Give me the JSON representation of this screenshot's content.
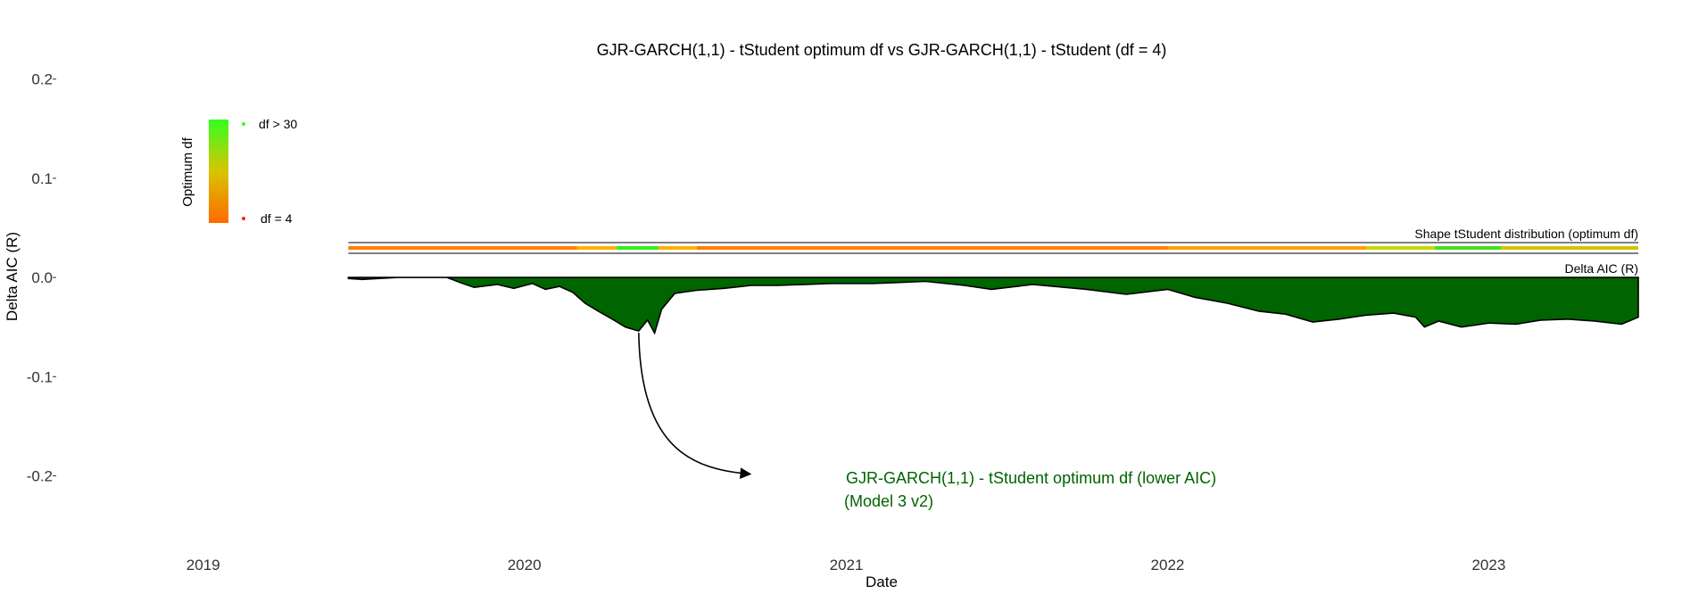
{
  "chart_data": {
    "type": "area",
    "title": "GJR-GARCH(1,1) - tStudent optimum df vs GJR-GARCH(1,1) - tStudent (df = 4)",
    "xlabel": "Date",
    "ylabel": "Delta AIC (R)",
    "x_ticks": [
      {
        "date": "2019-01-01",
        "label": "2019"
      },
      {
        "date": "2020-01-01",
        "label": "2020"
      },
      {
        "date": "2021-01-01",
        "label": "2021"
      },
      {
        "date": "2022-01-01",
        "label": "2022"
      },
      {
        "date": "2023-01-01",
        "label": "2023"
      }
    ],
    "y_ticks": [
      {
        "value": 0.2,
        "label": "0.2"
      },
      {
        "value": 0.1,
        "label": "0.1"
      },
      {
        "value": 0.0,
        "label": "0.0"
      },
      {
        "value": -0.1,
        "label": "-0.1"
      },
      {
        "value": -0.2,
        "label": "-0.2"
      }
    ],
    "xlim": [
      "2018-07-20",
      "2023-06-22"
    ],
    "ylim": [
      -0.258,
      0.215
    ],
    "grid": false,
    "series": [
      {
        "name": "Delta AIC (R)",
        "color": "#006400",
        "points": [
          [
            "2019-06-15",
            -0.001
          ],
          [
            "2019-07-01",
            -0.002
          ],
          [
            "2019-07-20",
            -0.001
          ],
          [
            "2019-08-10",
            0.0
          ],
          [
            "2019-09-10",
            0.0
          ],
          [
            "2019-10-05",
            0.0
          ],
          [
            "2019-10-20",
            -0.005
          ],
          [
            "2019-11-05",
            -0.01
          ],
          [
            "2019-12-01",
            -0.007
          ],
          [
            "2019-12-20",
            -0.011
          ],
          [
            "2020-01-10",
            -0.006
          ],
          [
            "2020-01-25",
            -0.012
          ],
          [
            "2020-02-10",
            -0.009
          ],
          [
            "2020-02-25",
            -0.015
          ],
          [
            "2020-03-10",
            -0.026
          ],
          [
            "2020-03-25",
            -0.034
          ],
          [
            "2020-04-10",
            -0.042
          ],
          [
            "2020-04-25",
            -0.05
          ],
          [
            "2020-05-10",
            -0.054
          ],
          [
            "2020-05-20",
            -0.043
          ],
          [
            "2020-05-28",
            -0.056
          ],
          [
            "2020-06-05",
            -0.032
          ],
          [
            "2020-06-20",
            -0.016
          ],
          [
            "2020-07-15",
            -0.013
          ],
          [
            "2020-08-15",
            -0.011
          ],
          [
            "2020-09-15",
            -0.008
          ],
          [
            "2020-10-15",
            -0.008
          ],
          [
            "2020-11-15",
            -0.007
          ],
          [
            "2020-12-15",
            -0.006
          ],
          [
            "2021-02-01",
            -0.006
          ],
          [
            "2021-04-01",
            -0.004
          ],
          [
            "2021-05-15",
            -0.008
          ],
          [
            "2021-06-15",
            -0.012
          ],
          [
            "2021-08-01",
            -0.007
          ],
          [
            "2021-10-01",
            -0.012
          ],
          [
            "2021-11-15",
            -0.017
          ],
          [
            "2022-01-01",
            -0.012
          ],
          [
            "2022-02-01",
            -0.02
          ],
          [
            "2022-03-10",
            -0.026
          ],
          [
            "2022-04-15",
            -0.034
          ],
          [
            "2022-05-15",
            -0.037
          ],
          [
            "2022-06-15",
            -0.045
          ],
          [
            "2022-07-15",
            -0.042
          ],
          [
            "2022-08-15",
            -0.038
          ],
          [
            "2022-09-15",
            -0.036
          ],
          [
            "2022-10-10",
            -0.04
          ],
          [
            "2022-10-20",
            -0.05
          ],
          [
            "2022-11-05",
            -0.044
          ],
          [
            "2022-12-01",
            -0.05
          ],
          [
            "2023-01-01",
            -0.046
          ],
          [
            "2023-02-01",
            -0.047
          ],
          [
            "2023-03-01",
            -0.043
          ],
          [
            "2023-04-01",
            -0.042
          ],
          [
            "2023-05-01",
            -0.044
          ],
          [
            "2023-06-01",
            -0.047
          ],
          [
            "2023-06-20",
            -0.04
          ]
        ]
      }
    ],
    "band_labels": {
      "shape": "Shape tStudent distribution (optimum df)",
      "delta": "Delta AIC (R)"
    },
    "df_segments": [
      {
        "start": "2019-06-15",
        "end": "2020-03-01",
        "color": "#ff8000"
      },
      {
        "start": "2020-03-01",
        "end": "2020-04-15",
        "color": "#ffb000"
      },
      {
        "start": "2020-04-15",
        "end": "2020-06-01",
        "color": "#33ee22"
      },
      {
        "start": "2020-06-01",
        "end": "2020-07-15",
        "color": "#ffb000"
      },
      {
        "start": "2020-07-15",
        "end": "2022-01-01",
        "color": "#ff8000"
      },
      {
        "start": "2022-01-01",
        "end": "2022-08-15",
        "color": "#ffa000"
      },
      {
        "start": "2022-08-15",
        "end": "2022-11-01",
        "color": "#c8d800"
      },
      {
        "start": "2022-11-01",
        "end": "2023-01-15",
        "color": "#44e022"
      },
      {
        "start": "2023-01-15",
        "end": "2023-06-20",
        "color": "#d0c400"
      }
    ],
    "legend": {
      "title": "Optimum df",
      "high_label": "df > 30",
      "low_label": "df = 4",
      "high_color": "#33ff22",
      "low_color": "#ff6a00",
      "placement": "top-left"
    },
    "annotation": {
      "line1": "GJR-GARCH(1,1) - tStudent optimum df (lower AIC)",
      "line2": "(Model 3 v2)",
      "color": "#006400",
      "from_date": "2020-05-10",
      "from_value": -0.054,
      "to_date": "2020-09-20",
      "to_value": -0.2
    }
  }
}
